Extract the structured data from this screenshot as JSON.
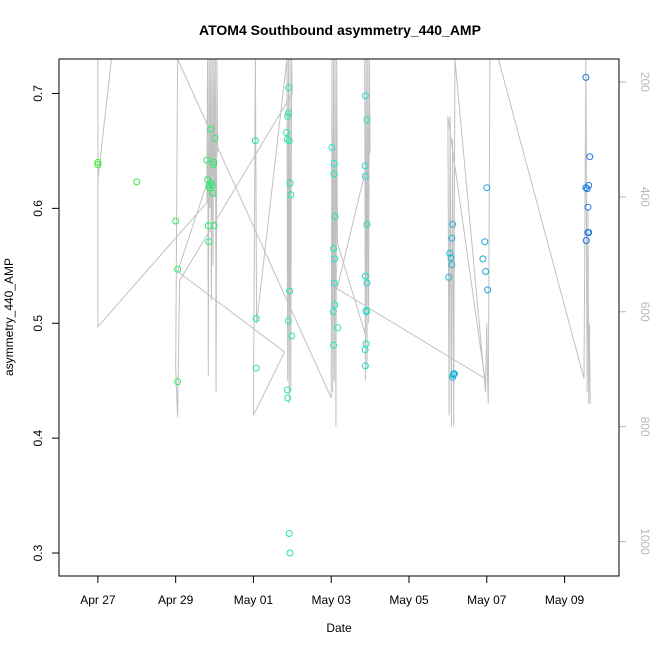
{
  "chart_data": {
    "type": "scatter",
    "title": "ATOM4 Southbound asymmetry_440_AMP",
    "xlabel": "Date",
    "ylabel": "asymmetry_440_AMP",
    "x_start": "2023-04-26T11:00",
    "xlim_days": [
      0,
      14.4
    ],
    "ylim": [
      0.28,
      0.73
    ],
    "y2lim": [
      1060,
      160
    ],
    "x_ticks": [
      {
        "day": 1,
        "label": "Apr 27"
      },
      {
        "day": 3,
        "label": "Apr 29"
      },
      {
        "day": 5,
        "label": "May 01"
      },
      {
        "day": 7,
        "label": "May 03"
      },
      {
        "day": 9,
        "label": "May 05"
      },
      {
        "day": 11,
        "label": "May 07"
      },
      {
        "day": 13,
        "label": "May 09"
      }
    ],
    "y_ticks": [
      {
        "value": 0.3,
        "label": "0.3"
      },
      {
        "value": 0.4,
        "label": "0.4"
      },
      {
        "value": 0.5,
        "label": "0.5"
      },
      {
        "value": 0.6,
        "label": "0.6"
      },
      {
        "value": 0.7,
        "label": "0.7"
      }
    ],
    "y2_ticks": [
      {
        "value": 200,
        "label": "200"
      },
      {
        "value": 400,
        "label": "400"
      },
      {
        "value": 600,
        "label": "600"
      },
      {
        "value": 800,
        "label": "800"
      },
      {
        "value": 1000,
        "label": "1000"
      }
    ],
    "colors": {
      "line": "#c0c0c0",
      "point_start": [
        60,
        235,
        40
      ],
      "point_mid": [
        30,
        230,
        200
      ],
      "point_end": [
        20,
        120,
        230
      ]
    },
    "points": [
      [
        1.0,
        0.64
      ],
      [
        1.0,
        0.638
      ],
      [
        2.0,
        0.623
      ],
      [
        3.0,
        0.589
      ],
      [
        3.05,
        0.547
      ],
      [
        3.05,
        0.449
      ],
      [
        3.8,
        0.642
      ],
      [
        3.82,
        0.625
      ],
      [
        3.84,
        0.585
      ],
      [
        3.85,
        0.571
      ],
      [
        3.86,
        0.62
      ],
      [
        3.87,
        0.618
      ],
      [
        3.9,
        0.669
      ],
      [
        3.92,
        0.622
      ],
      [
        3.94,
        0.62
      ],
      [
        3.96,
        0.613
      ],
      [
        3.97,
        0.638
      ],
      [
        3.98,
        0.64
      ],
      [
        3.99,
        0.585
      ],
      [
        4.01,
        0.661
      ],
      [
        5.05,
        0.659
      ],
      [
        5.07,
        0.504
      ],
      [
        5.07,
        0.461
      ],
      [
        5.85,
        0.666
      ],
      [
        5.87,
        0.66
      ],
      [
        5.88,
        0.68
      ],
      [
        5.9,
        0.683
      ],
      [
        5.91,
        0.705
      ],
      [
        5.92,
        0.659
      ],
      [
        5.94,
        0.622
      ],
      [
        5.96,
        0.612
      ],
      [
        5.9,
        0.502
      ],
      [
        5.93,
        0.528
      ],
      [
        5.98,
        0.489
      ],
      [
        5.87,
        0.442
      ],
      [
        5.88,
        0.435
      ],
      [
        5.92,
        0.317
      ],
      [
        5.94,
        0.3
      ],
      [
        7.02,
        0.653
      ],
      [
        7.08,
        0.639
      ],
      [
        7.07,
        0.63
      ],
      [
        7.1,
        0.593
      ],
      [
        7.06,
        0.565
      ],
      [
        7.09,
        0.556
      ],
      [
        7.08,
        0.535
      ],
      [
        7.09,
        0.516
      ],
      [
        7.05,
        0.51
      ],
      [
        7.17,
        0.496
      ],
      [
        7.06,
        0.481
      ],
      [
        7.88,
        0.698
      ],
      [
        7.92,
        0.677
      ],
      [
        7.87,
        0.637
      ],
      [
        7.88,
        0.628
      ],
      [
        7.92,
        0.586
      ],
      [
        7.88,
        0.541
      ],
      [
        7.92,
        0.535
      ],
      [
        7.9,
        0.511
      ],
      [
        7.91,
        0.51
      ],
      [
        7.9,
        0.482
      ],
      [
        7.87,
        0.477
      ],
      [
        7.88,
        0.463
      ],
      [
        11.0,
        0.618
      ],
      [
        10.95,
        0.571
      ],
      [
        10.9,
        0.556
      ],
      [
        10.97,
        0.545
      ],
      [
        11.02,
        0.529
      ],
      [
        10.12,
        0.586
      ],
      [
        10.1,
        0.574
      ],
      [
        10.05,
        0.561
      ],
      [
        10.08,
        0.557
      ],
      [
        10.1,
        0.551
      ],
      [
        10.02,
        0.54
      ],
      [
        10.15,
        0.456
      ],
      [
        10.17,
        0.456
      ],
      [
        10.12,
        0.453
      ],
      [
        10.14,
        0.455
      ],
      [
        13.55,
        0.714
      ],
      [
        13.65,
        0.645
      ],
      [
        13.62,
        0.62
      ],
      [
        13.55,
        0.618
      ],
      [
        13.58,
        0.617
      ],
      [
        13.6,
        0.601
      ],
      [
        13.62,
        0.579
      ],
      [
        13.6,
        0.579
      ],
      [
        13.56,
        0.572
      ]
    ],
    "line": [
      [
        1.0,
        0.615
      ],
      [
        1.0,
        0.625
      ],
      [
        1.35,
        0.73
      ],
      [
        1.0,
        0.73
      ],
      [
        1.0,
        0.497
      ],
      [
        3.8,
        0.605
      ],
      [
        3.82,
        0.73
      ],
      [
        3.84,
        0.454
      ],
      [
        3.86,
        0.73
      ],
      [
        3.88,
        0.6
      ],
      [
        3.9,
        0.73
      ],
      [
        3.92,
        0.52
      ],
      [
        3.94,
        0.73
      ],
      [
        3.96,
        0.55
      ],
      [
        3.98,
        0.73
      ],
      [
        4.0,
        0.61
      ],
      [
        4.02,
        0.73
      ],
      [
        4.04,
        0.44
      ],
      [
        4.06,
        0.73
      ],
      [
        4.08,
        0.65
      ],
      [
        3.05,
        0.545
      ],
      [
        5.8,
        0.475
      ],
      [
        5.0,
        0.42
      ],
      [
        5.05,
        0.73
      ],
      [
        5.08,
        0.5
      ],
      [
        5.86,
        0.73
      ],
      [
        5.88,
        0.45
      ],
      [
        5.9,
        0.73
      ],
      [
        5.92,
        0.43
      ],
      [
        5.94,
        0.73
      ],
      [
        5.96,
        0.44
      ],
      [
        5.98,
        0.73
      ],
      [
        6.0,
        0.7
      ],
      [
        3.1,
        0.537
      ],
      [
        3.05,
        0.418
      ],
      [
        3.0,
        0.46
      ],
      [
        3.05,
        0.73
      ],
      [
        7.0,
        0.435
      ],
      [
        7.02,
        0.73
      ],
      [
        7.04,
        0.44
      ],
      [
        7.06,
        0.73
      ],
      [
        7.08,
        0.45
      ],
      [
        7.1,
        0.73
      ],
      [
        7.12,
        0.41
      ],
      [
        7.14,
        0.73
      ],
      [
        7.16,
        0.57
      ],
      [
        7.88,
        0.49
      ],
      [
        7.86,
        0.73
      ],
      [
        7.88,
        0.45
      ],
      [
        7.9,
        0.73
      ],
      [
        7.92,
        0.46
      ],
      [
        7.94,
        0.73
      ],
      [
        7.96,
        0.5
      ],
      [
        7.98,
        0.73
      ],
      [
        8.0,
        0.65
      ],
      [
        7.15,
        0.53
      ],
      [
        10.95,
        0.452
      ],
      [
        10.0,
        0.68
      ],
      [
        10.03,
        0.42
      ],
      [
        10.06,
        0.68
      ],
      [
        10.09,
        0.41
      ],
      [
        10.12,
        0.66
      ],
      [
        10.15,
        0.41
      ],
      [
        10.18,
        0.73
      ],
      [
        10.97,
        0.44
      ],
      [
        11.0,
        0.5
      ],
      [
        11.02,
        0.45
      ],
      [
        11.04,
        0.43
      ],
      [
        11.08,
        0.73
      ],
      [
        11.3,
        0.73
      ],
      [
        13.5,
        0.452
      ],
      [
        13.55,
        0.73
      ],
      [
        13.58,
        0.44
      ],
      [
        13.6,
        0.6
      ],
      [
        13.62,
        0.43
      ],
      [
        13.64,
        0.5
      ],
      [
        13.66,
        0.43
      ]
    ]
  }
}
